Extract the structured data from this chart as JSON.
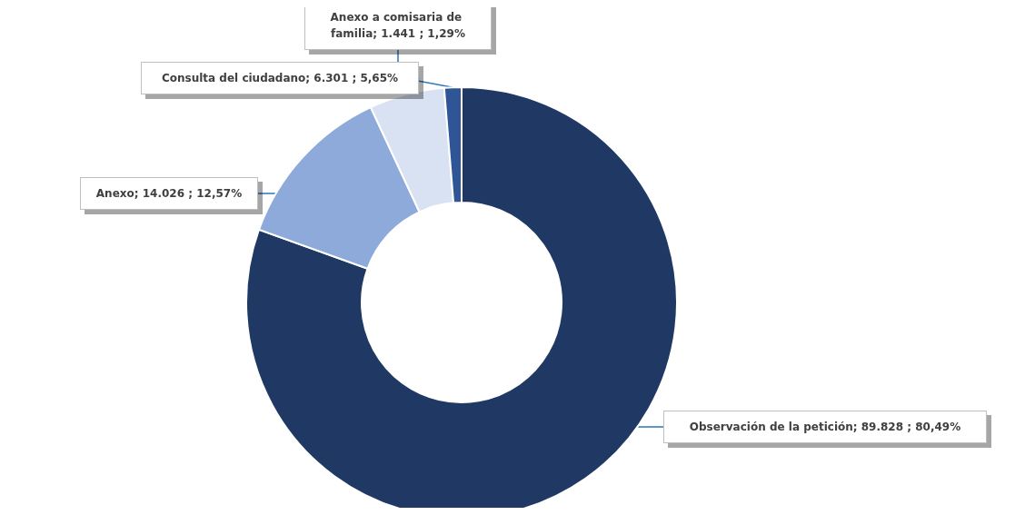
{
  "chart_data": {
    "type": "donut",
    "categories": [
      "Observación de la petición",
      "Anexo",
      "Consulta del ciudadano",
      "Anexo a comisaria de familia"
    ],
    "values": [
      89828,
      14026,
      6301,
      1441
    ],
    "value_labels": [
      "89.828 ; 80,49%",
      "14.026 ; 12,57%",
      "6.301 ; 5,65%",
      "1.441 ; 1,29%"
    ],
    "colors": [
      "#1f3864",
      "#8eaadb",
      "#d9e2f3",
      "#2f5597"
    ],
    "legend": false
  }
}
